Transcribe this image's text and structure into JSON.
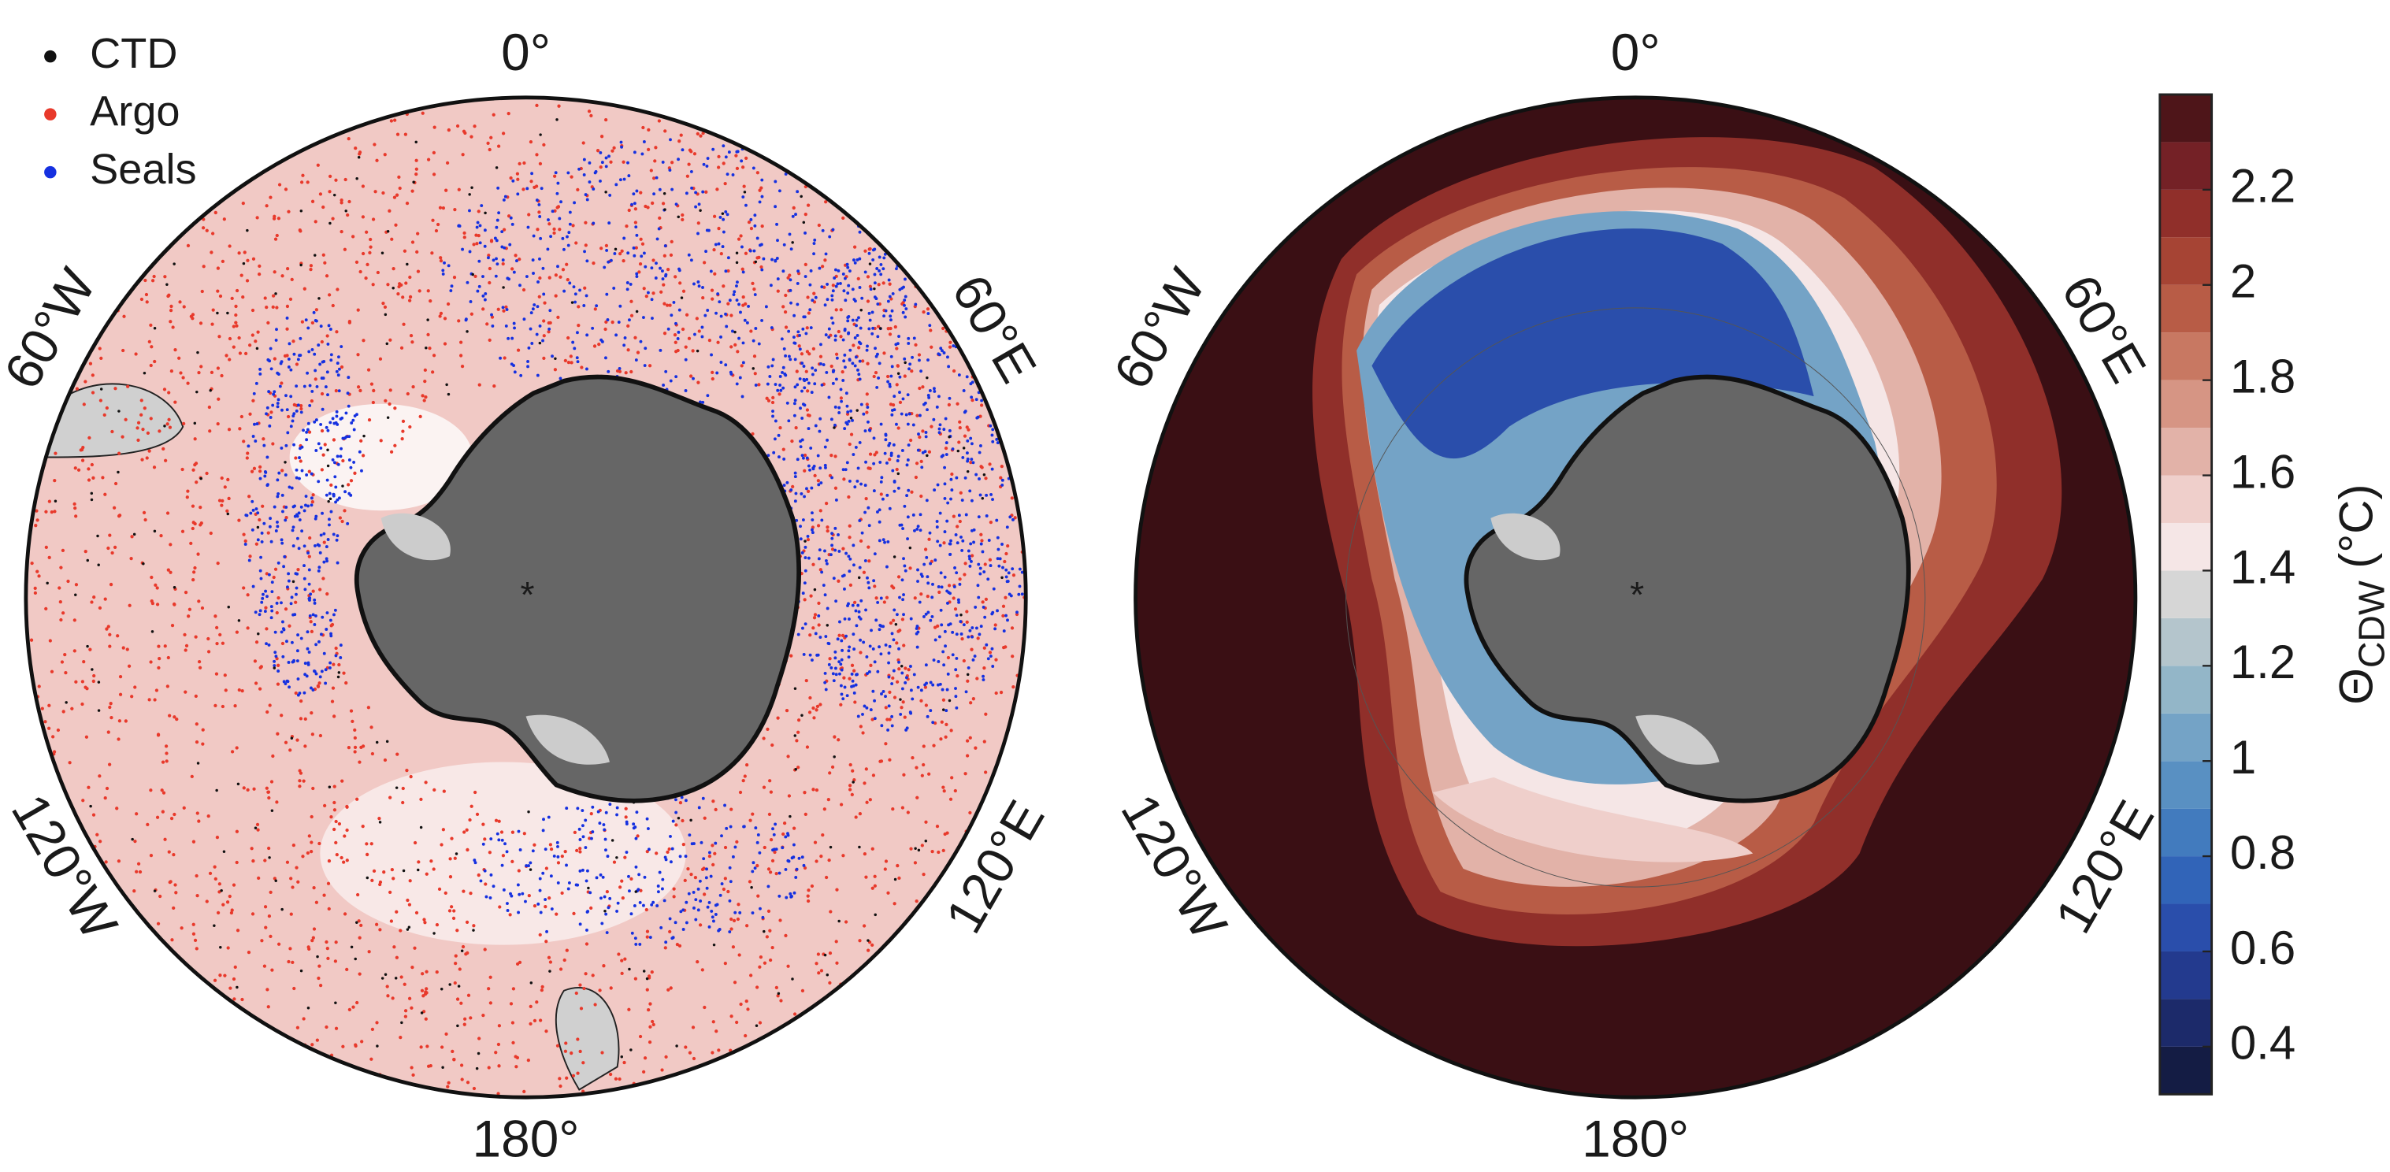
{
  "legend": {
    "items": [
      "CTD",
      "Argo",
      "Seals"
    ],
    "colors": [
      "#111111",
      "#e8392b",
      "#1530e0"
    ]
  },
  "maps": [
    {
      "labels": {
        "top": "0°",
        "upper_right": "60°E",
        "lower_right": "120°E",
        "bottom": "180°",
        "lower_left": "120°W",
        "upper_left": "60°W"
      }
    },
    {
      "labels": {
        "top": "0°",
        "upper_right": "60°E",
        "lower_right": "120°E",
        "bottom": "180°",
        "lower_left": "120°W",
        "upper_left": "60°W"
      }
    }
  ],
  "colorbar": {
    "symbol": "Θ",
    "subscript": "CDW",
    "unit": "(°C)",
    "lim": [
      0.3,
      2.4
    ],
    "ticks": [
      0.4,
      0.6,
      0.8,
      1,
      1.2,
      1.4,
      1.6,
      1.8,
      2,
      2.2
    ],
    "colors": [
      "#141c44",
      "#1c2a6a",
      "#233a8e",
      "#2a4eab",
      "#3164b8",
      "#427bbe",
      "#5990c2",
      "#74a3c6",
      "#93b6c8",
      "#b4c5cc",
      "#d6d6d6",
      "#f5e6e6",
      "#efcfcb",
      "#e2b2a8",
      "#d69584",
      "#c87862",
      "#b85c46",
      "#a64434",
      "#902f2a",
      "#742126",
      "#4e1519"
    ]
  }
}
